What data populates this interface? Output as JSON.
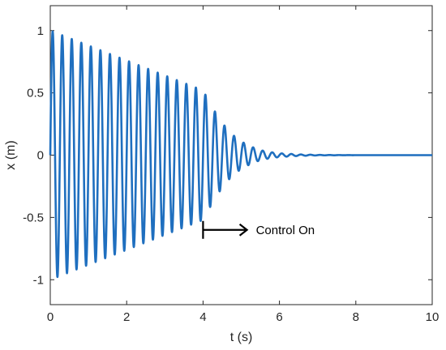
{
  "chart_data": {
    "type": "line",
    "title": "",
    "xlabel": "t (s)",
    "ylabel": "x (m)",
    "xlim": [
      0,
      10
    ],
    "ylim": [
      -1.2,
      1.2
    ],
    "xticks": [
      0,
      2,
      4,
      6,
      8,
      10
    ],
    "xtick_labels": [
      "0",
      "2",
      "4",
      "6",
      "8",
      "10"
    ],
    "yticks": [
      1,
      0.5,
      0,
      -0.5,
      -1
    ],
    "ytick_labels": [
      "1",
      "0.5",
      "0",
      "-0.5",
      "-1"
    ],
    "grid": false,
    "legend": "none",
    "series": [
      {
        "color": "#1f6fbf",
        "frequency_hz": 4,
        "envelope": {
          "t": [
            0,
            0.5,
            1,
            1.5,
            2,
            2.5,
            3,
            3.5,
            4,
            4.25,
            4.5,
            4.75,
            5,
            5.25,
            5.5,
            5.75,
            6,
            6.5,
            7,
            8,
            10
          ],
          "amplitude": [
            1.0,
            0.94,
            0.88,
            0.82,
            0.76,
            0.7,
            0.64,
            0.58,
            0.52,
            0.38,
            0.26,
            0.17,
            0.11,
            0.07,
            0.04,
            0.025,
            0.015,
            0.006,
            0.002,
            0.0,
            0.0
          ]
        }
      }
    ],
    "annotations": [
      {
        "text": "Control On",
        "arrow_from_x": 4.0,
        "arrow_to_x": 5.15,
        "y": -0.6
      }
    ]
  }
}
